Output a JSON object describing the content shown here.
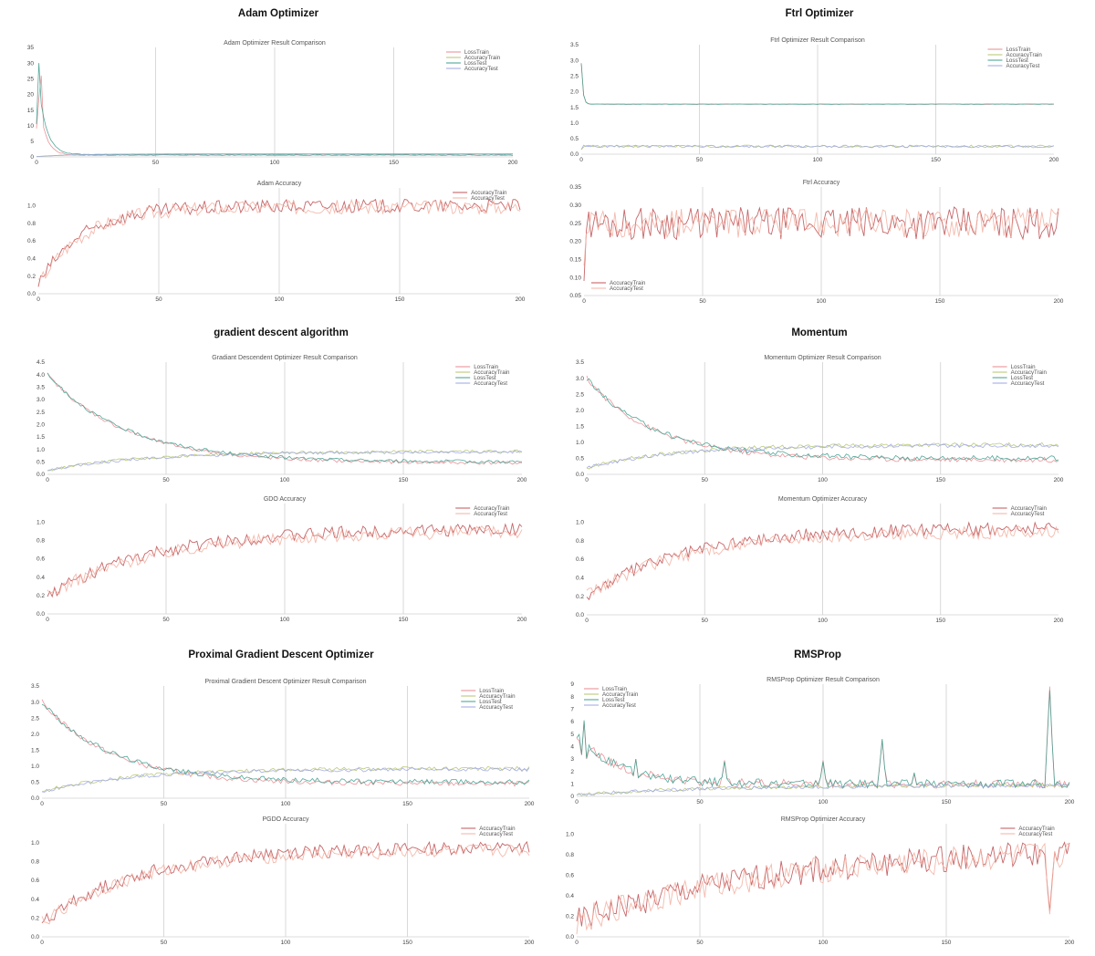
{
  "palette": {
    "LossTrain": "#e9888f",
    "AccuracyTrain": "#b5c56e",
    "LossTest": "#3e9f8f",
    "AccuracyTest": "#9ea6e3",
    "AccTrainSolo": "#c0565a",
    "AccTestSolo": "#f3b2a4",
    "grid": "#d0d0d0"
  },
  "panels": [
    {
      "title": "Adam Optimizer",
      "charts": [
        {
          "type": "line",
          "title": "Adam Optimizer Result Comparison",
          "xlim": [
            0,
            200
          ],
          "ylim": [
            0,
            35
          ],
          "xticks": [
            0,
            50,
            100,
            150,
            200
          ],
          "yticks": [
            0,
            5,
            10,
            15,
            20,
            25,
            30,
            35
          ],
          "yfmt": "int",
          "grid": true,
          "legend_position": "top-right",
          "series": [
            {
              "name": "LossTrain",
              "profile": {
                "kind": "decay",
                "start": 26,
                "end": 0.55,
                "k": 0.35,
                "noise": 0.15,
                "peakAt": 2
              }
            },
            {
              "name": "AccuracyTrain",
              "profile": {
                "kind": "rise",
                "start": 0.1,
                "end": 0.99,
                "k": 0.06,
                "noise": 0.03
              }
            },
            {
              "name": "LossTest",
              "profile": {
                "kind": "decay",
                "start": 30,
                "end": 0.7,
                "k": 0.3,
                "noise": 0.15,
                "peakAt": 1
              }
            },
            {
              "name": "AccuracyTest",
              "profile": {
                "kind": "rise",
                "start": 0.1,
                "end": 0.98,
                "k": 0.06,
                "noise": 0.03
              }
            }
          ]
        },
        {
          "type": "line",
          "title": "Adam Accuracy",
          "xlim": [
            0,
            200
          ],
          "ylim": [
            0,
            1.2
          ],
          "xticks": [
            0,
            50,
            100,
            150,
            200
          ],
          "yticks": [
            0,
            0.2,
            0.4,
            0.6,
            0.8,
            1.0
          ],
          "yfmt": "1dp",
          "grid": true,
          "legend_position": "top-right",
          "series": [
            {
              "name": "AccuracyTrain",
              "profile": {
                "kind": "rise",
                "start": 0.1,
                "end": 0.995,
                "k": 0.055,
                "noise": 0.08
              }
            },
            {
              "name": "AccuracyTest",
              "profile": {
                "kind": "rise",
                "start": 0.1,
                "end": 0.985,
                "k": 0.055,
                "noise": 0.08
              }
            }
          ]
        }
      ]
    },
    {
      "title": "Ftrl Optimizer",
      "charts": [
        {
          "type": "line",
          "title": "Ftrl Optimizer Result Comparison",
          "xlim": [
            0,
            200
          ],
          "ylim": [
            0,
            3.5
          ],
          "xticks": [
            0,
            50,
            100,
            150,
            200
          ],
          "yticks": [
            0,
            0.5,
            1.0,
            1.5,
            2.0,
            2.5,
            3.0,
            3.5
          ],
          "yfmt": "1dp",
          "grid": true,
          "legend_position": "top-right",
          "series": [
            {
              "name": "LossTrain",
              "profile": {
                "kind": "decay",
                "start": 2.9,
                "end": 1.6,
                "k": 1.5,
                "noise": 0.005
              }
            },
            {
              "name": "AccuracyTrain",
              "profile": {
                "kind": "flat",
                "start": 0.15,
                "end": 0.25,
                "noise": 0.04
              }
            },
            {
              "name": "LossTest",
              "profile": {
                "kind": "decay",
                "start": 2.9,
                "end": 1.6,
                "k": 1.5,
                "noise": 0.005
              }
            },
            {
              "name": "AccuracyTest",
              "profile": {
                "kind": "flat",
                "start": 0.15,
                "end": 0.25,
                "noise": 0.04
              }
            }
          ]
        },
        {
          "type": "line",
          "title": "Ftrl Accuracy",
          "xlim": [
            0,
            200
          ],
          "ylim": [
            0.05,
            0.35
          ],
          "xticks": [
            0,
            50,
            100,
            150,
            200
          ],
          "yticks": [
            0.05,
            0.1,
            0.15,
            0.2,
            0.25,
            0.3,
            0.35
          ],
          "yfmt": "2dp",
          "grid": true,
          "legend_position": "bottom-left",
          "series": [
            {
              "name": "AccuracyTrain",
              "profile": {
                "kind": "flat",
                "start": 0.1,
                "end": 0.25,
                "noise": 0.045
              }
            },
            {
              "name": "AccuracyTest",
              "profile": {
                "kind": "flat",
                "start": 0.1,
                "end": 0.25,
                "noise": 0.04
              }
            }
          ]
        }
      ]
    },
    {
      "title": "gradient descent algorithm",
      "charts": [
        {
          "type": "line",
          "title": "Gradiant Descendent Optimizer Result Comparison",
          "xlim": [
            0,
            200
          ],
          "ylim": [
            0,
            4.5
          ],
          "xticks": [
            0,
            50,
            100,
            150,
            200
          ],
          "yticks": [
            0,
            0.5,
            1.0,
            1.5,
            2.0,
            2.5,
            3.0,
            3.5,
            4.0,
            4.5
          ],
          "yfmt": "1dp",
          "grid": true,
          "legend_position": "top-right",
          "series": [
            {
              "name": "LossTrain",
              "profile": {
                "kind": "decay",
                "start": 4.0,
                "end": 0.45,
                "k": 0.03,
                "noise": 0.07
              }
            },
            {
              "name": "AccuracyTrain",
              "profile": {
                "kind": "rise",
                "start": 0.15,
                "end": 0.93,
                "k": 0.025,
                "noise": 0.06
              }
            },
            {
              "name": "LossTest",
              "profile": {
                "kind": "decay",
                "start": 4.0,
                "end": 0.5,
                "k": 0.03,
                "noise": 0.07
              }
            },
            {
              "name": "AccuracyTest",
              "profile": {
                "kind": "rise",
                "start": 0.15,
                "end": 0.9,
                "k": 0.025,
                "noise": 0.06
              }
            }
          ]
        },
        {
          "type": "line",
          "title": "GDO Accuracy",
          "xlim": [
            0,
            200
          ],
          "ylim": [
            0,
            1.2
          ],
          "xticks": [
            0,
            50,
            100,
            150,
            200
          ],
          "yticks": [
            0,
            0.2,
            0.4,
            0.6,
            0.8,
            1.0
          ],
          "yfmt": "1dp",
          "grid": true,
          "legend_position": "top-right",
          "series": [
            {
              "name": "AccuracyTrain",
              "profile": {
                "kind": "rise",
                "start": 0.2,
                "end": 0.93,
                "k": 0.022,
                "noise": 0.07
              }
            },
            {
              "name": "AccuracyTest",
              "profile": {
                "kind": "rise",
                "start": 0.2,
                "end": 0.9,
                "k": 0.022,
                "noise": 0.07
              }
            }
          ]
        }
      ]
    },
    {
      "title": "Momentum",
      "charts": [
        {
          "type": "line",
          "title": "Momentum Optimizer Result Comparison",
          "xlim": [
            0,
            200
          ],
          "ylim": [
            0,
            3.5
          ],
          "xticks": [
            0,
            50,
            100,
            150,
            200
          ],
          "yticks": [
            0,
            0.5,
            1.0,
            1.5,
            2.0,
            2.5,
            3.0,
            3.5
          ],
          "yfmt": "1dp",
          "grid": true,
          "legend_position": "top-right",
          "series": [
            {
              "name": "LossTrain",
              "profile": {
                "kind": "decay",
                "start": 3.0,
                "end": 0.45,
                "k": 0.035,
                "noise": 0.08
              }
            },
            {
              "name": "AccuracyTrain",
              "profile": {
                "kind": "rise",
                "start": 0.2,
                "end": 0.93,
                "k": 0.028,
                "noise": 0.06
              }
            },
            {
              "name": "LossTest",
              "profile": {
                "kind": "decay",
                "start": 3.0,
                "end": 0.5,
                "k": 0.035,
                "noise": 0.08
              }
            },
            {
              "name": "AccuracyTest",
              "profile": {
                "kind": "rise",
                "start": 0.2,
                "end": 0.9,
                "k": 0.028,
                "noise": 0.06
              }
            }
          ]
        },
        {
          "type": "line",
          "title": "Momentum Optimizer Accuracy",
          "xlim": [
            0,
            200
          ],
          "ylim": [
            0,
            1.2
          ],
          "xticks": [
            0,
            50,
            100,
            150,
            200
          ],
          "yticks": [
            0,
            0.2,
            0.4,
            0.6,
            0.8,
            1.0
          ],
          "yfmt": "1dp",
          "grid": true,
          "legend_position": "top-right",
          "series": [
            {
              "name": "AccuracyTrain",
              "profile": {
                "kind": "rise",
                "start": 0.2,
                "end": 0.94,
                "k": 0.024,
                "noise": 0.07
              }
            },
            {
              "name": "AccuracyTest",
              "profile": {
                "kind": "rise",
                "start": 0.2,
                "end": 0.9,
                "k": 0.024,
                "noise": 0.07
              }
            }
          ]
        }
      ]
    },
    {
      "title": "Proximal Gradient Descent Optimizer",
      "charts": [
        {
          "type": "line",
          "title": "Proximal Gradient Descent Optimizer Result Comparison",
          "xlim": [
            0,
            200
          ],
          "ylim": [
            0,
            3.5
          ],
          "xticks": [
            0,
            50,
            100,
            150,
            200
          ],
          "yticks": [
            0,
            0.5,
            1.0,
            1.5,
            2.0,
            2.5,
            3.0,
            3.5
          ],
          "yfmt": "1dp",
          "grid": true,
          "legend_position": "top-right",
          "series": [
            {
              "name": "LossTrain",
              "profile": {
                "kind": "decay",
                "start": 3.0,
                "end": 0.45,
                "k": 0.035,
                "noise": 0.08
              }
            },
            {
              "name": "AccuracyTrain",
              "profile": {
                "kind": "rise",
                "start": 0.2,
                "end": 0.93,
                "k": 0.028,
                "noise": 0.06
              }
            },
            {
              "name": "LossTest",
              "profile": {
                "kind": "decay",
                "start": 3.0,
                "end": 0.5,
                "k": 0.035,
                "noise": 0.08
              }
            },
            {
              "name": "AccuracyTest",
              "profile": {
                "kind": "rise",
                "start": 0.2,
                "end": 0.9,
                "k": 0.028,
                "noise": 0.06
              }
            }
          ]
        },
        {
          "type": "line",
          "title": "PGDO Accuracy",
          "xlim": [
            0,
            200
          ],
          "ylim": [
            0,
            1.2
          ],
          "xticks": [
            0,
            50,
            100,
            150,
            200
          ],
          "yticks": [
            0,
            0.2,
            0.4,
            0.6,
            0.8,
            1.0
          ],
          "yfmt": "1dp",
          "grid": true,
          "legend_position": "top-right",
          "series": [
            {
              "name": "AccuracyTrain",
              "profile": {
                "kind": "rise",
                "start": 0.15,
                "end": 0.95,
                "k": 0.025,
                "noise": 0.07
              }
            },
            {
              "name": "AccuracyTest",
              "profile": {
                "kind": "rise",
                "start": 0.15,
                "end": 0.92,
                "k": 0.025,
                "noise": 0.07
              }
            }
          ]
        }
      ]
    },
    {
      "title": "RMSProp",
      "charts": [
        {
          "type": "line",
          "title": "RMSProp Optimizer Result Comparison",
          "xlim": [
            0,
            200
          ],
          "ylim": [
            0,
            9
          ],
          "xticks": [
            0,
            50,
            100,
            150,
            200
          ],
          "yticks": [
            0,
            1,
            2,
            3,
            4,
            5,
            6,
            7,
            8,
            9
          ],
          "yfmt": "int",
          "grid": true,
          "legend_position": "top-left",
          "series": [
            {
              "name": "LossTrain",
              "profile": {
                "kind": "decay",
                "start": 5,
                "end": 1.0,
                "k": 0.06,
                "noise": 0.35,
                "spikes": [
                  [
                    3,
                    6.0
                  ],
                  [
                    24,
                    3.0
                  ],
                  [
                    60,
                    2.9
                  ],
                  [
                    100,
                    2.9
                  ],
                  [
                    124,
                    4.5
                  ],
                  [
                    137,
                    1.8
                  ],
                  [
                    192,
                    8.8
                  ]
                ]
              }
            },
            {
              "name": "AccuracyTrain",
              "profile": {
                "kind": "rise",
                "start": 0.1,
                "end": 0.9,
                "k": 0.02,
                "noise": 0.15
              }
            },
            {
              "name": "LossTest",
              "profile": {
                "kind": "decay",
                "start": 5,
                "end": 1.0,
                "k": 0.06,
                "noise": 0.35,
                "spikes": [
                  [
                    3,
                    6.1
                  ],
                  [
                    24,
                    3.0
                  ],
                  [
                    60,
                    2.8
                  ],
                  [
                    100,
                    2.8
                  ],
                  [
                    124,
                    4.6
                  ],
                  [
                    137,
                    1.9
                  ],
                  [
                    192,
                    8.5
                  ]
                ]
              }
            },
            {
              "name": "AccuracyTest",
              "profile": {
                "kind": "rise",
                "start": 0.1,
                "end": 0.88,
                "k": 0.02,
                "noise": 0.15
              }
            }
          ]
        },
        {
          "type": "line",
          "title": "RMSProp Optimizer Accuracy",
          "xlim": [
            0,
            200
          ],
          "ylim": [
            0,
            1.1
          ],
          "xticks": [
            0,
            50,
            100,
            150,
            200
          ],
          "yticks": [
            0,
            0.2,
            0.4,
            0.6,
            0.8,
            1.0
          ],
          "yfmt": "1dp",
          "grid": true,
          "legend_position": "top-right",
          "series": [
            {
              "name": "AccuracyTrain",
              "profile": {
                "kind": "rise",
                "start": 0.15,
                "end": 0.88,
                "k": 0.012,
                "noise": 0.13,
                "dips": [
                  [
                    192,
                    0.25
                  ]
                ]
              }
            },
            {
              "name": "AccuracyTest",
              "profile": {
                "kind": "rise",
                "start": 0.15,
                "end": 0.86,
                "k": 0.012,
                "noise": 0.13,
                "dips": [
                  [
                    192,
                    0.22
                  ]
                ]
              }
            }
          ]
        }
      ]
    }
  ]
}
